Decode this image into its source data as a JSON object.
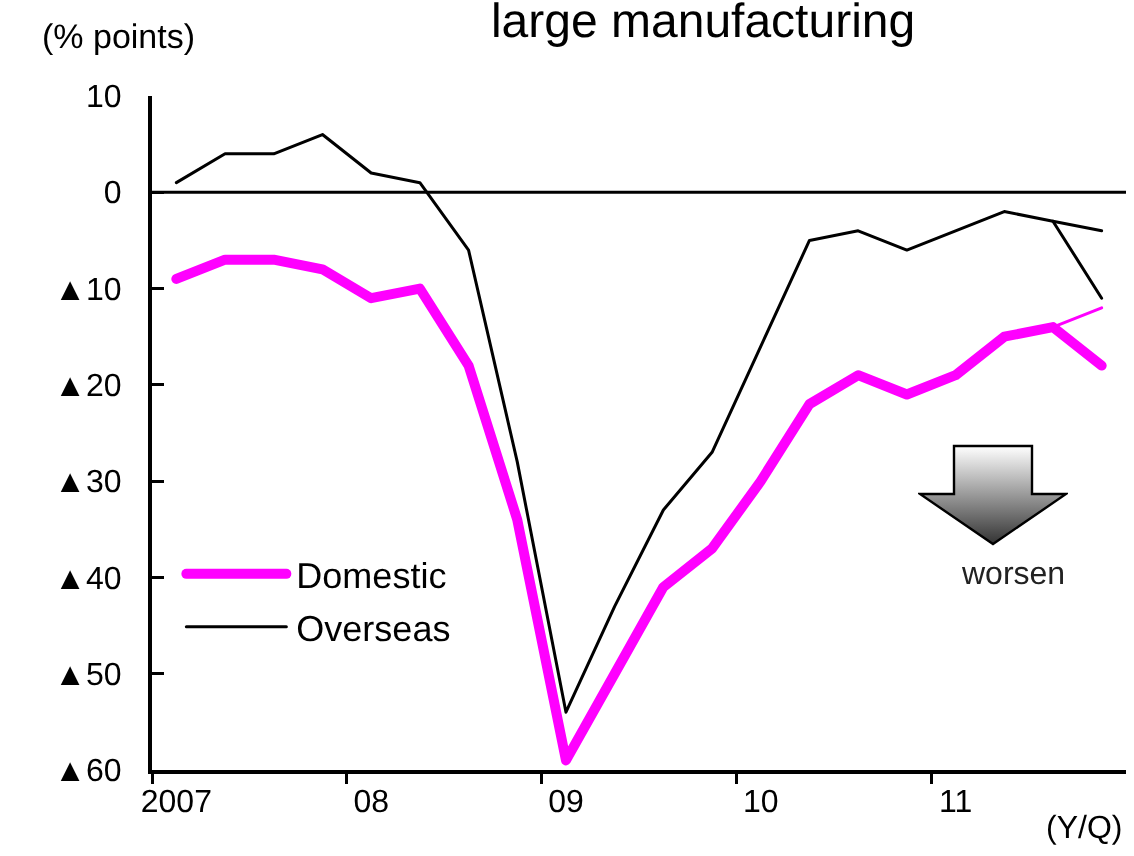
{
  "chart_data": {
    "type": "line",
    "title": "large manufacturing",
    "ylabel": "(% points)",
    "xlabel": "(Y/Q)",
    "categories": [
      "2007",
      null,
      null,
      null,
      "08",
      null,
      null,
      null,
      "09",
      null,
      null,
      null,
      "10",
      null,
      null,
      null,
      "11",
      null,
      null,
      null
    ],
    "series": [
      {
        "name": "Domestic",
        "color": "#ff00ff",
        "values": [
          -9,
          -7,
          -7,
          -8,
          -11,
          -10,
          -18,
          -34,
          -59,
          -50,
          -41,
          -37,
          -30,
          -22,
          -19,
          -21,
          -19,
          -15,
          -14,
          -18
        ]
      },
      {
        "name": "Overseas",
        "color": "#000000",
        "values": [
          1,
          4,
          4,
          6,
          2,
          1,
          -6,
          -28,
          -54,
          -43,
          -33,
          -27,
          -16,
          -5,
          -4,
          -6,
          -4,
          -2,
          -3,
          -11
        ]
      },
      {
        "color": "#ff00ff",
        "values": [
          null,
          null,
          null,
          null,
          null,
          null,
          null,
          null,
          null,
          null,
          null,
          null,
          null,
          null,
          null,
          null,
          null,
          null,
          -14,
          -12
        ]
      },
      {
        "color": "#000000",
        "values": [
          null,
          null,
          null,
          null,
          null,
          null,
          null,
          null,
          null,
          null,
          null,
          null,
          null,
          null,
          null,
          null,
          null,
          null,
          -3,
          -4
        ]
      }
    ],
    "ylim": [
      -60,
      10
    ],
    "yticks": [
      {
        "value": -60,
        "label": "▲60"
      },
      {
        "value": -50,
        "label": "▲50"
      },
      {
        "value": -40,
        "label": "▲40"
      },
      {
        "value": -30,
        "label": "▲30"
      },
      {
        "value": -20,
        "label": "▲20"
      },
      {
        "value": -10,
        "label": "▲10"
      },
      0,
      10
    ],
    "ref_lines": [
      {
        "axis": "y",
        "value": 0
      }
    ],
    "annotations": [
      "worsen"
    ],
    "legend": "bottom left",
    "marker": "none",
    "line_style": "solid"
  }
}
